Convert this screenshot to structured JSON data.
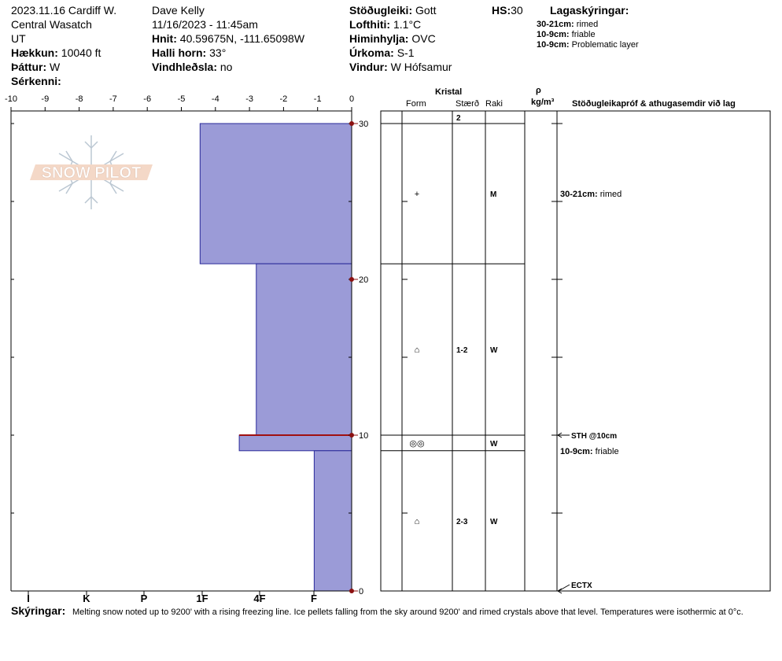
{
  "header": {
    "col1": {
      "line1": "2023.11.16 Cardiff W.",
      "line2": "Central Wasatch",
      "line3": "UT",
      "elevation_label": "Hækkun:",
      "elevation_value": "10040 ft",
      "aspect_label": "Þáttur:",
      "aspect_value": "W",
      "features_label": "Sérkenni:"
    },
    "col2": {
      "observer": "Dave Kelly",
      "datetime": "11/16/2023 - 11:45am",
      "coords_label": "Hnit:",
      "coords_value": "40.59675N, -111.65098W",
      "slope_label": "Halli horn:",
      "slope_value": "33°",
      "wind_loading_label": "Vindhleðsla:",
      "wind_loading_value": "no"
    },
    "col3": {
      "stability_label": "Stöðugleiki:",
      "stability_value": "Gott",
      "air_temp_label": "Lofthiti:",
      "air_temp_value": "1.1°C",
      "sky_label": "Himinhylja:",
      "sky_value": "OVC",
      "precip_label": "Úrkoma:",
      "precip_value": "S-1",
      "wind_label": "Vindur:",
      "wind_value": "W Hófsamur"
    },
    "col4": {
      "hs_label": "HS:",
      "hs_value": "30"
    },
    "legend": {
      "title": "Lagaskýringar:",
      "items": [
        {
          "range": "30-21cm:",
          "text": "rimed"
        },
        {
          "range": "10-9cm:",
          "text": "friable"
        },
        {
          "range": "10-9cm:",
          "text": "Problematic layer"
        }
      ]
    }
  },
  "logo": {
    "text": "SNOW PILOT"
  },
  "table_headers": {
    "crystal": "Kristal",
    "form": "Form",
    "size": "Stærð",
    "moisture": "Raki",
    "rho": "ρ",
    "density_unit": "kg/m³",
    "tests": "Stöðugleikapróf & athugasemdir við lag"
  },
  "chart_data": {
    "type": "snow-profile",
    "hardness_axis": {
      "top_ticks": [
        "-10",
        "-9",
        "-8",
        "-7",
        "-6",
        "-5",
        "-4",
        "-3",
        "-2",
        "-1",
        "0"
      ],
      "bottom_labels": [
        "I",
        "K",
        "P",
        "1F",
        "4F",
        "F"
      ],
      "min": -10,
      "max": 0
    },
    "depth_axis": {
      "labels": [
        "30",
        "20",
        "10",
        "0"
      ],
      "min": 0,
      "max": 30,
      "unit": "cm"
    },
    "layers": [
      {
        "top": 30,
        "bottom": 21,
        "hardness": -4.45,
        "form": "+",
        "size": "",
        "moisture": "M"
      },
      {
        "top": 21,
        "bottom": 10,
        "hardness": -2.8,
        "form": "⌂",
        "size": "1-2",
        "moisture": "W"
      },
      {
        "top": 10,
        "bottom": 9,
        "hardness": -3.3,
        "form": "◎◎",
        "size": "",
        "moisture": "W"
      },
      {
        "top": 9,
        "bottom": 0,
        "hardness": -1.1,
        "form": "⌂",
        "size": "2-3",
        "moisture": "W"
      }
    ],
    "problem_layer": {
      "depth": 10
    },
    "grain_size_top": "2",
    "layer_comments": [
      {
        "range": "30-21cm:",
        "text": "rimed",
        "depth": 25.5
      },
      {
        "range": "10-9cm:",
        "text": "friable",
        "depth": 9
      }
    ],
    "tests": [
      {
        "text": "STH @10cm",
        "depth": 10
      },
      {
        "text": "ECTX",
        "depth": 0
      }
    ]
  },
  "comments": {
    "label": "Skýringar:",
    "text": "Melting snow noted up to 9200' with a rising freezing line. Ice pellets falling from the sky around 9200' and rimed crystals above that level. Temperatures were isothermic at 0°c."
  }
}
